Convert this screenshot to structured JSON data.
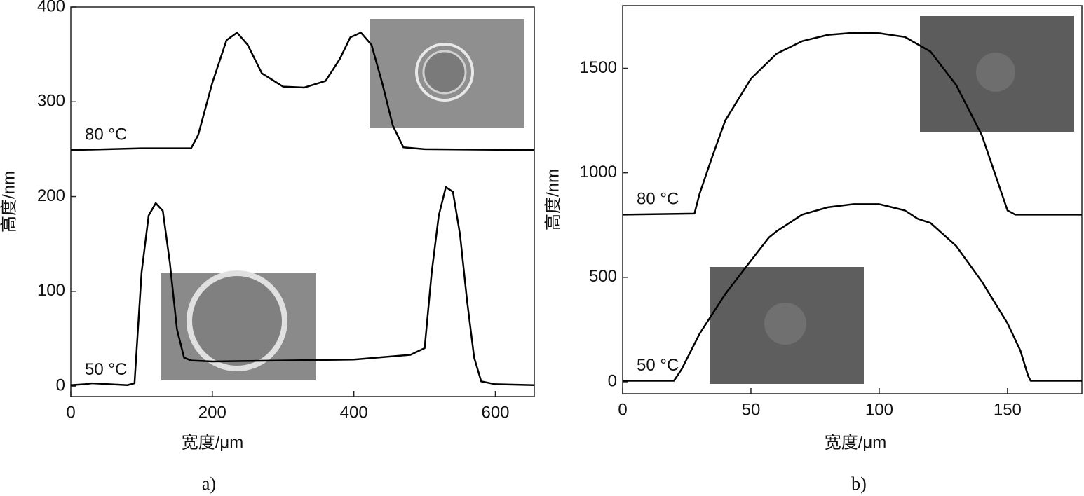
{
  "chart_data": [
    {
      "type": "line",
      "caption": "a)",
      "xlabel": "宽度/μm",
      "ylabel": "高度/nm",
      "xlim": [
        0,
        655
      ],
      "xticks": [
        0,
        200,
        400,
        600
      ],
      "ylim": [
        -11,
        400
      ],
      "yticks": [
        0,
        100,
        200,
        300,
        400
      ],
      "series": [
        {
          "name": "80 °C",
          "color": "#000000",
          "x": [
            0,
            100,
            170,
            180,
            200,
            220,
            235,
            250,
            270,
            300,
            330,
            360,
            380,
            395,
            410,
            425,
            440,
            455,
            470,
            500,
            655
          ],
          "values": [
            249,
            251,
            251,
            265,
            320,
            365,
            373,
            360,
            330,
            316,
            315,
            322,
            345,
            368,
            373,
            360,
            320,
            275,
            252,
            250,
            249
          ]
        },
        {
          "name": "50 °C",
          "color": "#000000",
          "x": [
            0,
            20,
            30,
            80,
            90,
            100,
            110,
            120,
            130,
            140,
            150,
            160,
            170,
            200,
            300,
            400,
            480,
            500,
            510,
            520,
            530,
            540,
            550,
            560,
            570,
            580,
            600,
            655
          ],
          "values": [
            1,
            2,
            3,
            1,
            3,
            120,
            180,
            193,
            185,
            130,
            60,
            30,
            27,
            26,
            27,
            28,
            33,
            40,
            120,
            180,
            210,
            205,
            160,
            90,
            30,
            5,
            2,
            1
          ]
        }
      ]
    },
    {
      "type": "line",
      "caption": "b)",
      "xlabel": "宽度/μm",
      "ylabel": "高度/nm",
      "xlim": [
        0,
        179
      ],
      "xticks": [
        0,
        50,
        100,
        150
      ],
      "ylim": [
        -57,
        1800
      ],
      "yticks": [
        0,
        500,
        1000,
        1500
      ],
      "series": [
        {
          "name": "80 °C",
          "color": "#000000",
          "x": [
            0,
            28,
            30,
            35,
            40,
            50,
            60,
            70,
            80,
            90,
            100,
            110,
            120,
            130,
            140,
            145,
            150,
            153,
            179
          ],
          "values": [
            800,
            805,
            900,
            1080,
            1250,
            1450,
            1570,
            1630,
            1660,
            1670,
            1668,
            1650,
            1580,
            1420,
            1180,
            1000,
            820,
            800,
            800
          ]
        },
        {
          "name": "50 °C",
          "color": "#000000",
          "x": [
            0,
            20,
            23,
            30,
            40,
            50,
            57,
            60,
            70,
            80,
            90,
            100,
            110,
            115,
            120,
            130,
            140,
            150,
            155,
            158,
            159,
            179
          ],
          "values": [
            5,
            5,
            60,
            230,
            420,
            580,
            690,
            720,
            800,
            835,
            850,
            850,
            820,
            780,
            760,
            650,
            480,
            280,
            150,
            30,
            5,
            5
          ]
        }
      ]
    }
  ]
}
